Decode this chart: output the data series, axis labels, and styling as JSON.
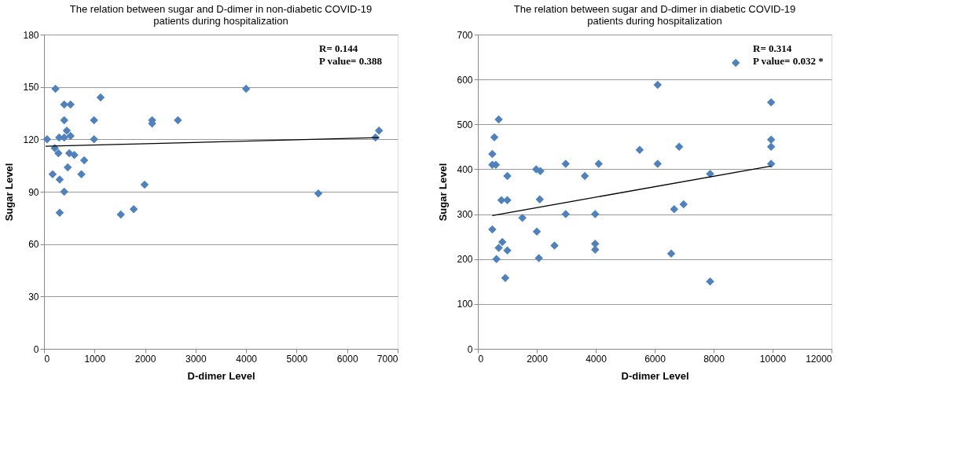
{
  "chart_data": [
    {
      "type": "scatter",
      "title": "The relation between sugar and D-dimer in non-diabetic COVID-19 patients during hospitalization",
      "xlabel": "D-dimer Level",
      "ylabel": "Sugar Level",
      "xlim": [
        0,
        7000
      ],
      "xticks": [
        0,
        1000,
        2000,
        3000,
        4000,
        5000,
        6000,
        7000
      ],
      "ylim": [
        0,
        180
      ],
      "yticks": [
        0,
        30,
        60,
        90,
        120,
        150,
        180
      ],
      "grid": "y",
      "marker": "diamond",
      "annotations": [
        "R= 0.144",
        "P value= 0.388"
      ],
      "series": [
        {
          "color": "#4f81bd",
          "x": [
            227,
            400,
            525,
            400,
            990,
            1120,
            60,
            300,
            400,
            450,
            525,
            990,
            213,
            285,
            500,
            600,
            795,
            470,
            170,
            310,
            740,
            400,
            1990,
            310,
            1520,
            1775,
            2140,
            2140,
            2650,
            4000,
            5430,
            6630,
            6560
          ],
          "values": [
            149,
            140,
            140,
            131,
            131,
            144,
            120,
            121,
            121,
            125,
            122,
            120,
            115,
            112,
            112,
            111,
            108,
            104,
            100,
            97,
            100,
            90,
            94,
            78,
            77,
            80,
            131,
            129,
            131,
            149,
            89,
            125,
            121
          ]
        },
        {
          "type": "line",
          "marker": "none",
          "color": "#000000",
          "x": [
            30,
            6630
          ],
          "values": [
            116,
            121
          ]
        }
      ]
    },
    {
      "type": "scatter",
      "title": "The relation between sugar and D-dimer in diabetic COVID-19 patients during hospitalization",
      "xlabel": "D-dimer Level",
      "ylabel": "Sugar Level",
      "xlim": [
        0,
        12000
      ],
      "xticks": [
        0,
        2000,
        4000,
        6000,
        8000,
        10000,
        12000
      ],
      "ylim": [
        0,
        700
      ],
      "yticks": [
        0,
        100,
        200,
        300,
        400,
        500,
        600,
        700
      ],
      "grid": "y",
      "marker": "diamond",
      "annotations": [
        "R= 0.314",
        "P value= 0.032 *"
      ],
      "series": [
        {
          "color": "#4f81bd",
          "x": [
            707,
            560,
            490,
            490,
            610,
            1000,
            800,
            1000,
            1980,
            2120,
            2100,
            1510,
            490,
            2000,
            830,
            707,
            1000,
            630,
            2070,
            930,
            2600,
            8750,
            6100,
            9950,
            9950,
            9950,
            9950,
            6830,
            5490,
            6100,
            2980,
            4100,
            3630,
            7880,
            6660,
            6980,
            2980,
            3980,
            3980,
            3980,
            6560,
            7880
          ],
          "values": [
            511,
            471,
            434,
            410,
            410,
            385,
            331,
            331,
            400,
            396,
            333,
            292,
            266,
            261,
            238,
            225,
            219,
            200,
            202,
            158,
            230,
            637,
            588,
            549,
            466,
            450,
            412,
            450,
            443,
            412,
            412,
            412,
            385,
            390,
            311,
            322,
            300,
            300,
            234,
            221,
            212,
            150
          ]
        },
        {
          "type": "line",
          "marker": "none",
          "color": "#000000",
          "x": [
            490,
            9950
          ],
          "values": [
            297,
            407
          ]
        }
      ]
    }
  ]
}
